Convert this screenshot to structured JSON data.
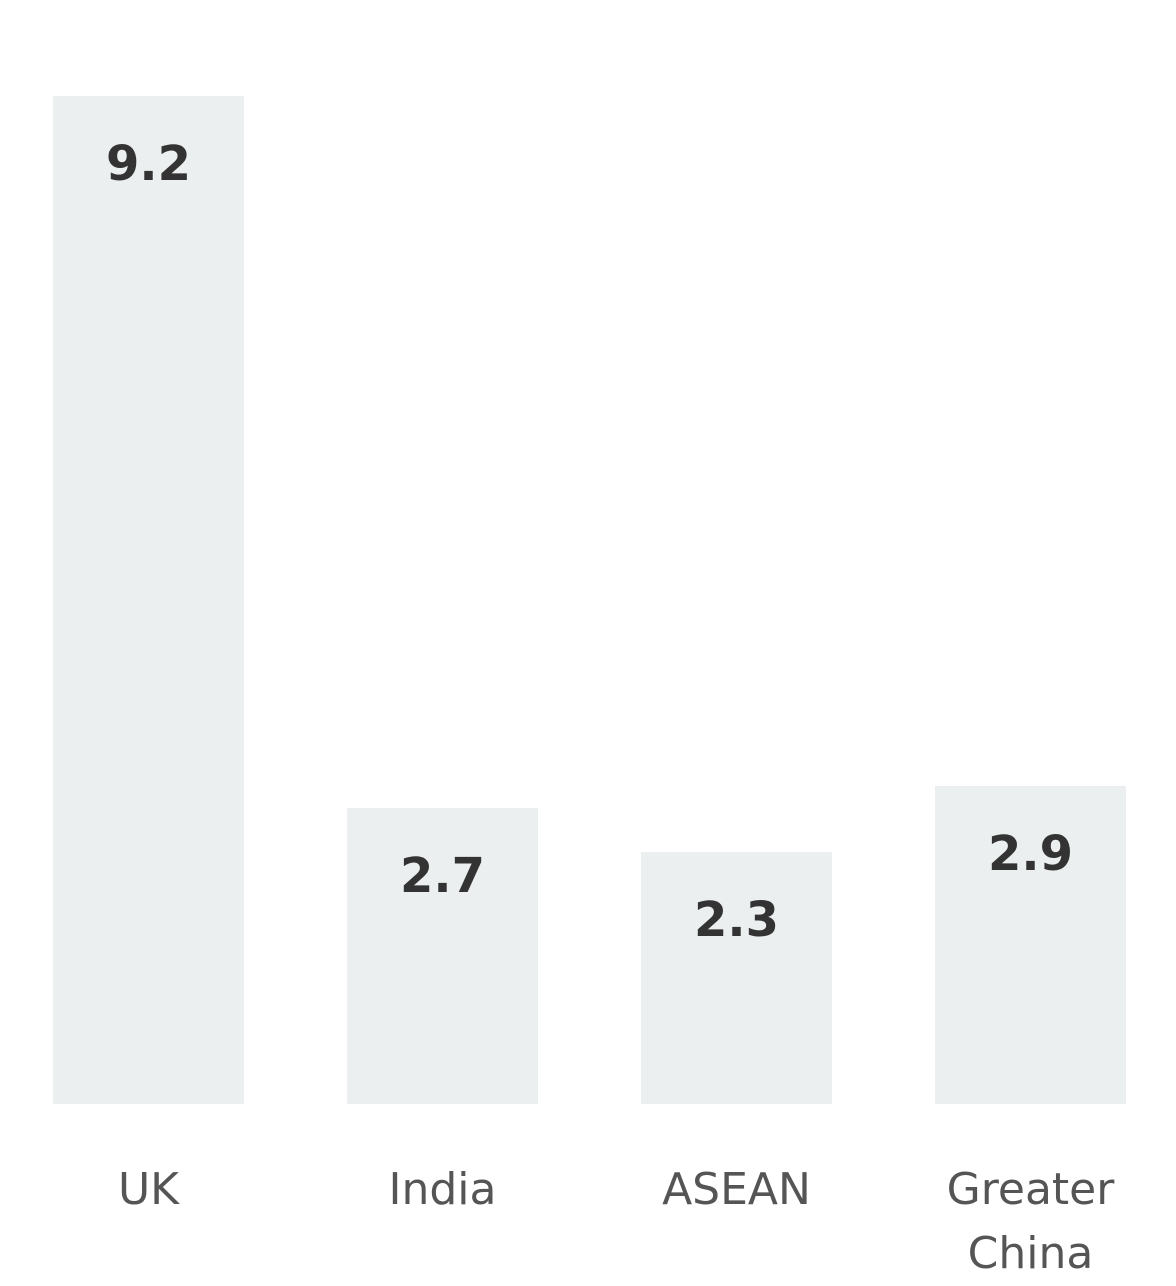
{
  "chart_data": {
    "type": "bar",
    "categories": [
      "UK",
      "India",
      "ASEAN",
      "Greater China"
    ],
    "values": [
      9.2,
      2.7,
      2.3,
      2.9
    ],
    "color": "#ebeff0"
  }
}
